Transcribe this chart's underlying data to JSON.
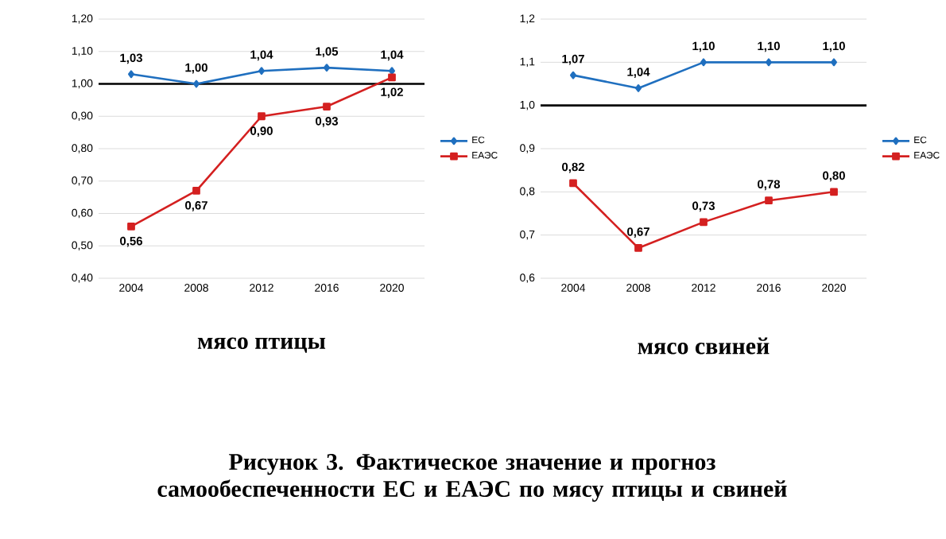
{
  "chart_data": [
    {
      "type": "line",
      "xlabel": "мясо птицы",
      "categories": [
        "2004",
        "2008",
        "2012",
        "2016",
        "2020"
      ],
      "series": [
        {
          "name": "ЕС",
          "color": "#1f6fbf",
          "marker": "diamond",
          "values": [
            1.03,
            1.0,
            1.04,
            1.05,
            1.04
          ],
          "value_labels": [
            "1,03",
            "1,00",
            "1,04",
            "1,05",
            "1,04"
          ]
        },
        {
          "name": "ЕАЭС",
          "color": "#d42020",
          "marker": "square",
          "values": [
            0.56,
            0.67,
            0.9,
            0.93,
            1.02
          ],
          "value_labels": [
            "0,56",
            "0,67",
            "0,90",
            "0,93",
            "1,02"
          ]
        }
      ],
      "ylim": [
        0.4,
        1.2
      ],
      "yticks": [
        {
          "value": 0.4,
          "label": "0,40"
        },
        {
          "value": 0.5,
          "label": "0,50"
        },
        {
          "value": 0.6,
          "label": "0,60"
        },
        {
          "value": 0.7,
          "label": "0,70"
        },
        {
          "value": 0.8,
          "label": "0,80"
        },
        {
          "value": 0.9,
          "label": "0,90"
        },
        {
          "value": 1.0,
          "label": "1,00"
        },
        {
          "value": 1.1,
          "label": "1,10"
        },
        {
          "value": 1.2,
          "label": "1,20"
        }
      ],
      "ref_lines": [
        {
          "axis": "y",
          "value": 1.0,
          "color": "#000000"
        }
      ],
      "grid": "y",
      "legend": "right",
      "annotations": [
        "Рисунок 3. Фактическое значение и прогноз самообеспеченности ЕС и ЕАЭС по мясу птицы и свиней"
      ]
    },
    {
      "type": "line",
      "xlabel": "мясо свиней",
      "categories": [
        "2004",
        "2008",
        "2012",
        "2016",
        "2020"
      ],
      "series": [
        {
          "name": "ЕС",
          "color": "#1f6fbf",
          "marker": "diamond",
          "values": [
            1.07,
            1.04,
            1.1,
            1.1,
            1.1
          ],
          "value_labels": [
            "1,07",
            "1,04",
            "1,10",
            "1,10",
            "1,10"
          ]
        },
        {
          "name": "ЕАЭС",
          "color": "#d42020",
          "marker": "square",
          "values": [
            0.82,
            0.67,
            0.73,
            0.78,
            0.8
          ],
          "value_labels": [
            "0,82",
            "0,67",
            "0,73",
            "0,78",
            "0,80"
          ]
        }
      ],
      "ylim": [
        0.6,
        1.2
      ],
      "yticks": [
        {
          "value": 0.6,
          "label": "0,6"
        },
        {
          "value": 0.7,
          "label": "0,7"
        },
        {
          "value": 0.8,
          "label": "0,8"
        },
        {
          "value": 0.9,
          "label": "0,9"
        },
        {
          "value": 1.0,
          "label": "1,0"
        },
        {
          "value": 1.1,
          "label": "1,1"
        },
        {
          "value": 1.2,
          "label": "1,2"
        }
      ],
      "ref_lines": [
        {
          "axis": "y",
          "value": 1.0,
          "color": "#000000"
        }
      ],
      "grid": "y",
      "legend": "right"
    }
  ]
}
